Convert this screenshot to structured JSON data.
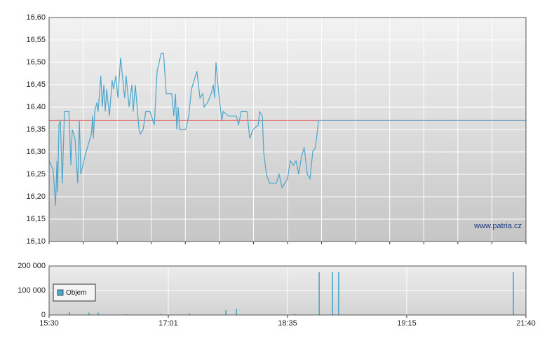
{
  "chart_data": [
    {
      "type": "line",
      "watermark": "www.patria.cz",
      "color": "#4da6cc",
      "reference_line": {
        "value": 16.37,
        "color": "#e04040"
      },
      "xlim": [
        0,
        14
      ],
      "xticks": [
        0,
        1,
        2,
        3,
        4,
        5,
        6,
        7,
        8,
        9,
        10,
        11,
        12,
        13,
        14
      ],
      "ylim": [
        16.1,
        16.6
      ],
      "yticks": [
        {
          "value": 16.1,
          "label": "16,10"
        },
        {
          "value": 16.15,
          "label": "16,15"
        },
        {
          "value": 16.2,
          "label": "16,20"
        },
        {
          "value": 16.25,
          "label": "16,25"
        },
        {
          "value": 16.3,
          "label": "16,30"
        },
        {
          "value": 16.35,
          "label": "16,35"
        },
        {
          "value": 16.4,
          "label": "16,40"
        },
        {
          "value": 16.45,
          "label": "16,45"
        },
        {
          "value": 16.5,
          "label": "16,50"
        },
        {
          "value": 16.55,
          "label": "16,55"
        },
        {
          "value": 16.6,
          "label": "16,60"
        }
      ],
      "grid": true,
      "x": [
        0,
        0.12,
        0.19,
        0.23,
        0.25,
        0.29,
        0.33,
        0.39,
        0.45,
        0.58,
        0.64,
        0.68,
        0.76,
        0.84,
        0.89,
        0.93,
        1.05,
        1.24,
        1.28,
        1.3,
        1.34,
        1.4,
        1.44,
        1.52,
        1.56,
        1.61,
        1.65,
        1.69,
        1.77,
        1.85,
        1.89,
        1.96,
        2.02,
        2.1,
        2.14,
        2.22,
        2.26,
        2.35,
        2.43,
        2.47,
        2.53,
        2.64,
        2.68,
        2.76,
        2.84,
        2.96,
        3.09,
        3.17,
        3.29,
        3.36,
        3.44,
        3.6,
        3.66,
        3.71,
        3.75,
        3.79,
        3.83,
        3.95,
        4.01,
        4.1,
        4.18,
        4.26,
        4.34,
        4.43,
        4.51,
        4.55,
        4.65,
        4.76,
        4.82,
        4.86,
        4.9,
        4.98,
        5.07,
        5.11,
        5.27,
        5.35,
        5.5,
        5.56,
        5.64,
        5.81,
        5.89,
        5.99,
        6.14,
        6.18,
        6.26,
        6.3,
        6.38,
        6.47,
        6.59,
        6.67,
        6.75,
        6.84,
        6.92,
        7.0,
        7.08,
        7.17,
        7.25,
        7.33,
        7.41,
        7.49,
        7.58,
        7.66,
        7.74,
        7.82,
        7.91,
        7.99,
        14
      ],
      "values": [
        16.28,
        16.26,
        16.18,
        16.28,
        16.21,
        16.36,
        16.37,
        16.23,
        16.39,
        16.39,
        16.27,
        16.35,
        16.33,
        16.23,
        16.37,
        16.25,
        16.29,
        16.34,
        16.38,
        16.33,
        16.39,
        16.41,
        16.39,
        16.47,
        16.4,
        16.45,
        16.39,
        16.44,
        16.38,
        16.46,
        16.44,
        16.47,
        16.42,
        16.51,
        16.48,
        16.42,
        16.47,
        16.4,
        16.45,
        16.39,
        16.45,
        16.35,
        16.34,
        16.35,
        16.39,
        16.39,
        16.36,
        16.48,
        16.52,
        16.52,
        16.43,
        16.43,
        16.38,
        16.43,
        16.35,
        16.4,
        16.35,
        16.35,
        16.35,
        16.38,
        16.44,
        16.46,
        16.48,
        16.42,
        16.43,
        16.4,
        16.41,
        16.43,
        16.45,
        16.42,
        16.5,
        16.43,
        16.37,
        16.39,
        16.38,
        16.38,
        16.38,
        16.36,
        16.39,
        16.39,
        16.33,
        16.35,
        16.36,
        16.39,
        16.38,
        16.3,
        16.25,
        16.23,
        16.23,
        16.23,
        16.25,
        16.22,
        16.23,
        16.24,
        16.28,
        16.27,
        16.28,
        16.25,
        16.29,
        16.31,
        16.25,
        16.24,
        16.3,
        16.31,
        16.37,
        16.37,
        16.37
      ]
    },
    {
      "type": "bar",
      "xlim": [
        0,
        14
      ],
      "xticks": [
        {
          "value": 0,
          "label": "15:30"
        },
        {
          "value": 3.5,
          "label": "17:01"
        },
        {
          "value": 7,
          "label": "18:35"
        },
        {
          "value": 10.5,
          "label": "19:15"
        },
        {
          "value": 14,
          "label": "21:40"
        }
      ],
      "ylim": [
        0,
        200000
      ],
      "yticks": [
        0,
        {
          "value": 100000,
          "label": "100 000"
        },
        {
          "value": 200000,
          "label": "200 000"
        }
      ],
      "grid": true,
      "legend": "left",
      "x": [
        0.6,
        1.17,
        1.44,
        2.26,
        3.29,
        4.12,
        5.19,
        5.5,
        7.21,
        7.93,
        8.32,
        8.5,
        13.63
      ],
      "series": [
        {
          "name": "Objem",
          "color": "#4da6cc",
          "values": [
            12000,
            10000,
            10000,
            4000,
            4000,
            8000,
            20000,
            25000,
            5000,
            175000,
            175000,
            175000,
            175000
          ]
        }
      ]
    }
  ]
}
